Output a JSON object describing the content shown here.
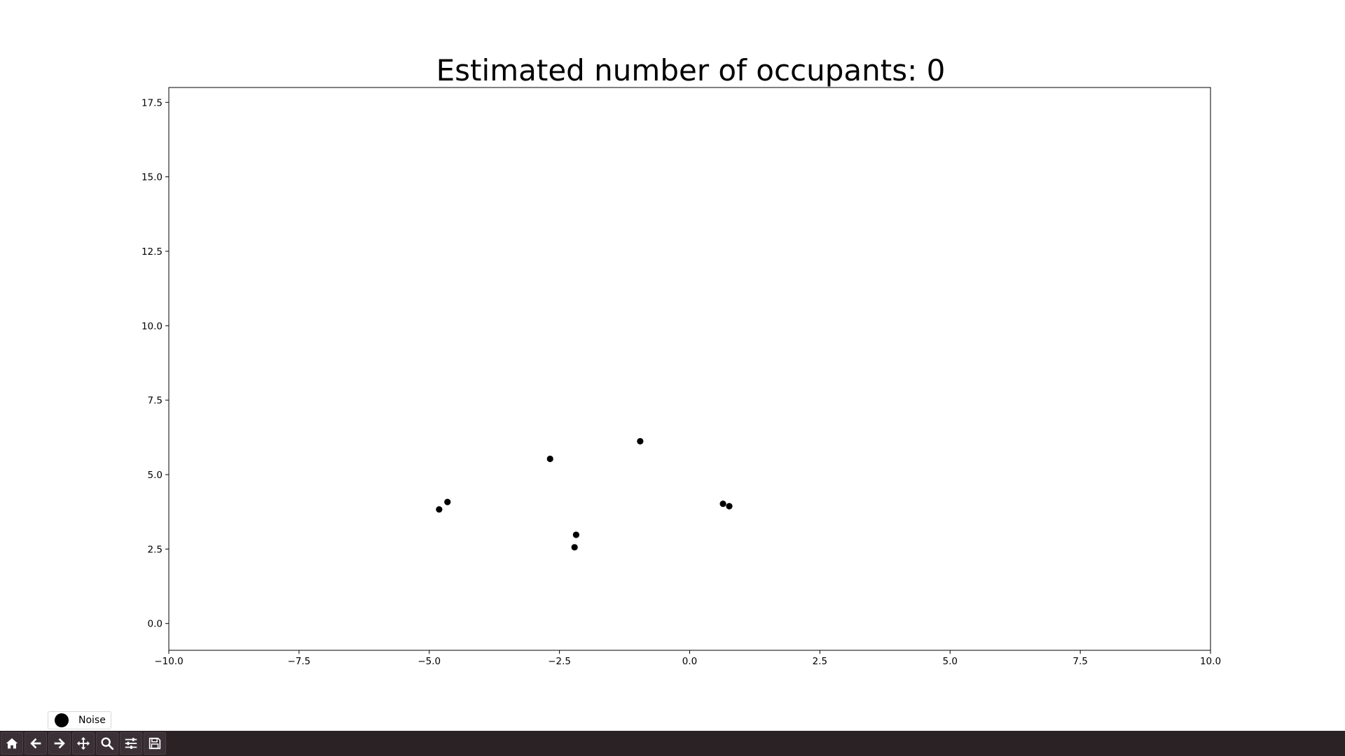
{
  "chart_data": {
    "type": "scatter",
    "title": "Estimated number of occupants: 0",
    "xlim": [
      -10,
      10
    ],
    "ylim": [
      -0.9,
      18.0
    ],
    "xticks": [
      -10.0,
      -7.5,
      -5.0,
      -2.5,
      0.0,
      2.5,
      5.0,
      7.5,
      10.0
    ],
    "xtick_labels": [
      "−10.0",
      "−7.5",
      "−5.0",
      "−2.5",
      "0.0",
      "2.5",
      "5.0",
      "7.5",
      "10.0"
    ],
    "yticks": [
      0.0,
      2.5,
      5.0,
      7.5,
      10.0,
      12.5,
      15.0,
      17.5
    ],
    "ytick_labels": [
      "0.0",
      "2.5",
      "5.0",
      "7.5",
      "10.0",
      "12.5",
      "15.0",
      "17.5"
    ],
    "grid": false,
    "legend_position": "bottom-left",
    "series": [
      {
        "name": "Noise",
        "color": "#000000",
        "points": [
          {
            "x": -4.81,
            "y": 3.83
          },
          {
            "x": -4.65,
            "y": 4.08
          },
          {
            "x": -2.68,
            "y": 5.53
          },
          {
            "x": -0.95,
            "y": 6.12
          },
          {
            "x": -2.18,
            "y": 2.98
          },
          {
            "x": -2.21,
            "y": 2.56
          },
          {
            "x": 0.64,
            "y": 4.02
          },
          {
            "x": 0.76,
            "y": 3.94
          }
        ]
      }
    ]
  },
  "legend": {
    "label": "Noise"
  },
  "toolbar": {
    "buttons": [
      {
        "name": "home-button",
        "icon": "home-icon"
      },
      {
        "name": "back-button",
        "icon": "arrow-left-icon"
      },
      {
        "name": "forward-button",
        "icon": "arrow-right-icon"
      },
      {
        "name": "pan-button",
        "icon": "move-icon"
      },
      {
        "name": "zoom-button",
        "icon": "magnifier-icon"
      },
      {
        "name": "configure-subplots-button",
        "icon": "sliders-icon"
      },
      {
        "name": "save-button",
        "icon": "floppy-disk-icon"
      }
    ]
  }
}
